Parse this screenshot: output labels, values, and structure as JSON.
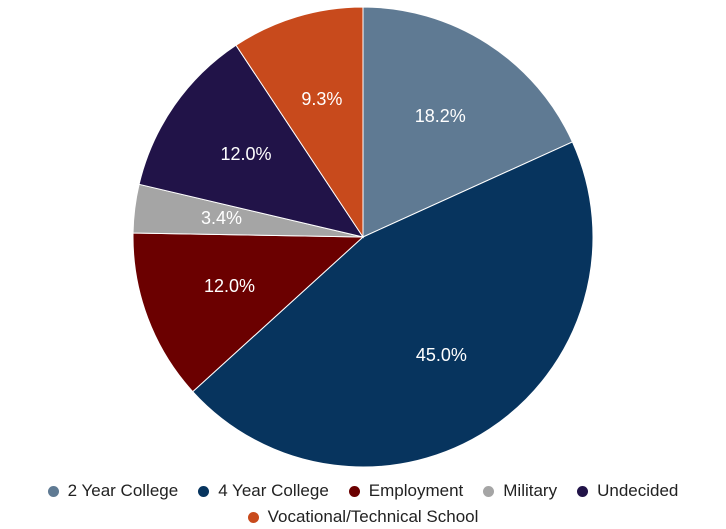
{
  "chart_data": {
    "type": "pie",
    "title": "",
    "start_angle_deg": 0,
    "direction": "clockwise",
    "series": [
      {
        "categories": [
          "2 Year College",
          "4 Year College",
          "Employment",
          "Military",
          "Undecided",
          "Vocational/Technical School"
        ],
        "values": [
          18.2,
          45.0,
          12.0,
          3.4,
          12.0,
          9.3
        ],
        "labels": [
          "18.2%",
          "45.0%",
          "12.0%",
          "3.4%",
          "12.0%",
          "9.3%"
        ],
        "colors": [
          "#5f7a93",
          "#07345e",
          "#6b0000",
          "#a5a5a5",
          "#211348",
          "#c84a1c"
        ]
      }
    ],
    "legend": {
      "position": "bottom",
      "items": [
        "2 Year College",
        "4 Year College",
        "Employment",
        "Military",
        "Undecided",
        "Vocational/Technical School"
      ]
    }
  }
}
